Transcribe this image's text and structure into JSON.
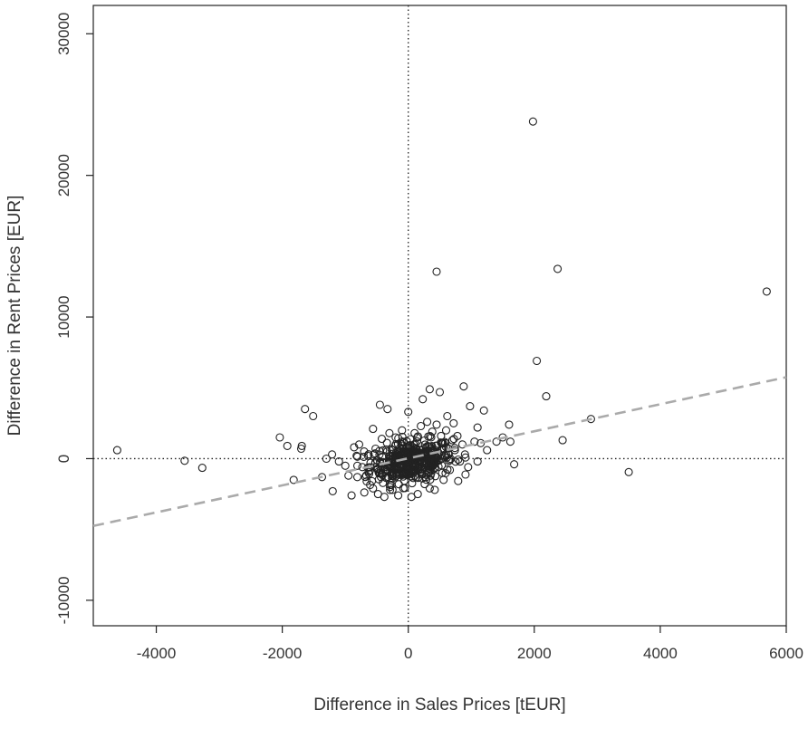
{
  "chart_data": {
    "type": "scatter",
    "title": "",
    "xlabel": "Difference in Sales Prices [tEUR]",
    "ylabel": "Difference in Rent Prices [EUR]",
    "xlim": [
      -5000,
      6000
    ],
    "ylim": [
      -11800,
      32000
    ],
    "xticks": [
      -4000,
      -2000,
      0,
      2000,
      4000,
      6000
    ],
    "xtick_labels": [
      "-4000",
      "-2000",
      "0",
      "2000",
      "4000",
      "6000"
    ],
    "yticks": [
      -10000,
      0,
      10000,
      20000,
      30000
    ],
    "ytick_labels": [
      "-10000",
      "0",
      "10000",
      "20000",
      "30000"
    ],
    "grid": false,
    "reference_lines": {
      "x": 0,
      "y": 0,
      "style": "dotted"
    },
    "trend_line": {
      "x": [
        -5000,
        6000
      ],
      "y": [
        -4750,
        5750
      ],
      "style": "dashed",
      "color": "#aaaaaa"
    },
    "marker": {
      "shape": "open-circle",
      "color": "#222222"
    },
    "cluster": {
      "x_center": 50,
      "y_center": -200,
      "x_spread": 330,
      "y_spread": 700,
      "count": 450
    },
    "points": [
      [
        1980,
        23800
      ],
      [
        450,
        13200
      ],
      [
        2370,
        13400
      ],
      [
        5690,
        11800
      ],
      [
        2040,
        6900
      ],
      [
        2190,
        4400
      ],
      [
        2900,
        2800
      ],
      [
        2450,
        1300
      ],
      [
        1600,
        2400
      ],
      [
        1620,
        1200
      ],
      [
        1680,
        -400
      ],
      [
        3500,
        -950
      ],
      [
        -4620,
        600
      ],
      [
        -3550,
        -150
      ],
      [
        -3270,
        -650
      ],
      [
        -2040,
        1500
      ],
      [
        -1920,
        900
      ],
      [
        -1700,
        700
      ],
      [
        -1690,
        900
      ],
      [
        -1640,
        3500
      ],
      [
        -1510,
        3000
      ],
      [
        -1820,
        -1500
      ],
      [
        -1370,
        -1300
      ],
      [
        -1210,
        300
      ],
      [
        -1200,
        -2300
      ],
      [
        -1100,
        -200
      ],
      [
        -1000,
        -500
      ],
      [
        -950,
        -1200
      ],
      [
        -900,
        -2600
      ],
      [
        -860,
        800
      ],
      [
        -780,
        1000
      ],
      [
        -730,
        -600
      ],
      [
        -700,
        500
      ],
      [
        -660,
        -1600
      ],
      [
        -640,
        200
      ],
      [
        -600,
        -300
      ],
      [
        -560,
        -2100
      ],
      [
        -520,
        700
      ],
      [
        -480,
        -2500
      ],
      [
        -450,
        3800
      ],
      [
        -420,
        1400
      ],
      [
        -380,
        -2700
      ],
      [
        -330,
        3500
      ],
      [
        -300,
        1800
      ],
      [
        -250,
        -2200
      ],
      [
        -200,
        1500
      ],
      [
        -160,
        -2600
      ],
      [
        -100,
        2000
      ],
      [
        0,
        3300
      ],
      [
        50,
        -2700
      ],
      [
        100,
        1800
      ],
      [
        150,
        -2500
      ],
      [
        200,
        2300
      ],
      [
        230,
        4200
      ],
      [
        260,
        -1800
      ],
      [
        300,
        2600
      ],
      [
        340,
        4900
      ],
      [
        380,
        1900
      ],
      [
        420,
        -2200
      ],
      [
        450,
        2400
      ],
      [
        500,
        4700
      ],
      [
        520,
        1600
      ],
      [
        560,
        -1500
      ],
      [
        600,
        2000
      ],
      [
        620,
        3000
      ],
      [
        660,
        -800
      ],
      [
        700,
        1300
      ],
      [
        740,
        600
      ],
      [
        780,
        1600
      ],
      [
        820,
        -200
      ],
      [
        860,
        1000
      ],
      [
        880,
        5100
      ],
      [
        900,
        300
      ],
      [
        950,
        -600
      ],
      [
        980,
        3700
      ],
      [
        1050,
        1200
      ],
      [
        1100,
        2200
      ],
      [
        1150,
        1100
      ],
      [
        1200,
        3400
      ],
      [
        1250,
        600
      ],
      [
        1400,
        1200
      ],
      [
        1500,
        1500
      ],
      [
        1100,
        -200
      ],
      [
        -1300,
        0
      ],
      [
        -820,
        200
      ],
      [
        720,
        2500
      ],
      [
        -560,
        2100
      ],
      [
        340,
        -2100
      ]
    ]
  }
}
